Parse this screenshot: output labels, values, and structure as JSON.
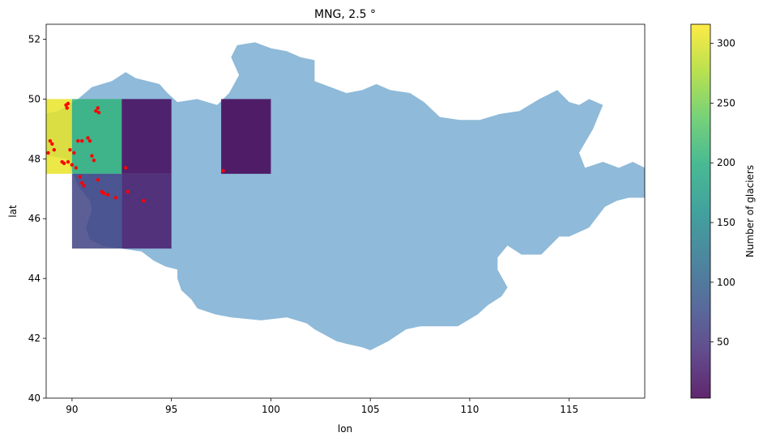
{
  "chart_data": {
    "type": "heatmap",
    "title": "MNG, 2.5 °",
    "xlabel": "lon",
    "ylabel": "lat",
    "xlim": [
      88.7,
      118.8
    ],
    "ylim": [
      40,
      52.5
    ],
    "xticks": [
      90,
      95,
      100,
      105,
      110,
      115
    ],
    "yticks": [
      40,
      42,
      44,
      46,
      48,
      50,
      52
    ],
    "grid": false,
    "cell_size_deg": 2.5,
    "cells": [
      {
        "lon": [
          87.5,
          90.0
        ],
        "lat": [
          47.5,
          50.0
        ],
        "value": 305
      },
      {
        "lon": [
          90.0,
          92.5
        ],
        "lat": [
          47.5,
          50.0
        ],
        "value": 205
      },
      {
        "lon": [
          92.5,
          95.0
        ],
        "lat": [
          47.5,
          50.0
        ],
        "value": 8
      },
      {
        "lon": [
          97.5,
          100.0
        ],
        "lat": [
          47.5,
          50.0
        ],
        "value": 3
      },
      {
        "lon": [
          90.0,
          92.5
        ],
        "lat": [
          45.0,
          47.5
        ],
        "value": 65
      },
      {
        "lon": [
          92.5,
          95.0
        ],
        "lat": [
          45.0,
          47.5
        ],
        "value": 25
      }
    ],
    "country_outline": [
      [
        87.8,
        49.2
      ],
      [
        88.6,
        49.5
      ],
      [
        89.3,
        49.6
      ],
      [
        90.3,
        50.0
      ],
      [
        91.0,
        50.4
      ],
      [
        92.0,
        50.6
      ],
      [
        92.7,
        50.9
      ],
      [
        93.2,
        50.7
      ],
      [
        94.4,
        50.5
      ],
      [
        94.8,
        50.2
      ],
      [
        95.3,
        49.9
      ],
      [
        96.3,
        50.0
      ],
      [
        97.3,
        49.8
      ],
      [
        97.9,
        50.2
      ],
      [
        98.4,
        50.8
      ],
      [
        98.0,
        51.4
      ],
      [
        98.3,
        51.8
      ],
      [
        99.2,
        51.9
      ],
      [
        100.0,
        51.7
      ],
      [
        100.8,
        51.6
      ],
      [
        101.5,
        51.4
      ],
      [
        102.2,
        51.3
      ],
      [
        102.2,
        50.6
      ],
      [
        103.0,
        50.4
      ],
      [
        103.8,
        50.2
      ],
      [
        104.6,
        50.3
      ],
      [
        105.3,
        50.5
      ],
      [
        106.0,
        50.3
      ],
      [
        107.0,
        50.2
      ],
      [
        107.7,
        49.9
      ],
      [
        108.5,
        49.4
      ],
      [
        109.5,
        49.3
      ],
      [
        110.5,
        49.3
      ],
      [
        111.5,
        49.5
      ],
      [
        112.5,
        49.6
      ],
      [
        113.5,
        50.0
      ],
      [
        114.4,
        50.3
      ],
      [
        115.0,
        49.9
      ],
      [
        115.5,
        49.8
      ],
      [
        116.0,
        50.0
      ],
      [
        116.7,
        49.8
      ],
      [
        116.2,
        49.0
      ],
      [
        115.5,
        48.2
      ],
      [
        115.8,
        47.7
      ],
      [
        116.7,
        47.9
      ],
      [
        117.5,
        47.7
      ],
      [
        118.2,
        47.9
      ],
      [
        118.8,
        47.7
      ],
      [
        118.8,
        46.7
      ],
      [
        118.0,
        46.7
      ],
      [
        117.4,
        46.6
      ],
      [
        116.8,
        46.4
      ],
      [
        116.0,
        45.7
      ],
      [
        115.0,
        45.4
      ],
      [
        114.5,
        45.4
      ],
      [
        113.6,
        44.8
      ],
      [
        112.6,
        44.8
      ],
      [
        111.9,
        45.1
      ],
      [
        111.4,
        44.7
      ],
      [
        111.4,
        44.3
      ],
      [
        111.9,
        43.7
      ],
      [
        111.6,
        43.4
      ],
      [
        110.9,
        43.1
      ],
      [
        110.4,
        42.8
      ],
      [
        109.4,
        42.4
      ],
      [
        108.6,
        42.4
      ],
      [
        107.5,
        42.4
      ],
      [
        106.8,
        42.3
      ],
      [
        105.9,
        41.9
      ],
      [
        105.0,
        41.6
      ],
      [
        104.6,
        41.7
      ],
      [
        103.9,
        41.8
      ],
      [
        103.3,
        41.9
      ],
      [
        102.2,
        42.3
      ],
      [
        101.8,
        42.5
      ],
      [
        100.8,
        42.7
      ],
      [
        99.5,
        42.6
      ],
      [
        98.0,
        42.7
      ],
      [
        97.2,
        42.8
      ],
      [
        96.3,
        43.0
      ],
      [
        96.0,
        43.3
      ],
      [
        95.5,
        43.6
      ],
      [
        95.3,
        44.0
      ],
      [
        95.3,
        44.3
      ],
      [
        94.7,
        44.4
      ],
      [
        94.1,
        44.6
      ],
      [
        93.5,
        44.9
      ],
      [
        92.5,
        45.0
      ],
      [
        91.5,
        45.1
      ],
      [
        90.9,
        45.3
      ],
      [
        90.7,
        45.7
      ],
      [
        91.0,
        46.3
      ],
      [
        90.9,
        46.6
      ],
      [
        90.3,
        47.1
      ],
      [
        90.0,
        47.6
      ],
      [
        89.7,
        48.0
      ],
      [
        88.8,
        48.1
      ],
      [
        88.1,
        48.4
      ],
      [
        87.8,
        48.7
      ]
    ],
    "glacier_points": [
      [
        89.7,
        49.8
      ],
      [
        89.75,
        49.7
      ],
      [
        89.8,
        49.85
      ],
      [
        91.3,
        49.7
      ],
      [
        91.2,
        49.6
      ],
      [
        91.35,
        49.55
      ],
      [
        88.9,
        48.6
      ],
      [
        89.0,
        48.5
      ],
      [
        89.1,
        48.3
      ],
      [
        89.9,
        48.3
      ],
      [
        90.1,
        48.2
      ],
      [
        90.3,
        48.6
      ],
      [
        90.5,
        48.6
      ],
      [
        90.8,
        48.7
      ],
      [
        90.9,
        48.6
      ],
      [
        91.0,
        48.1
      ],
      [
        91.1,
        47.95
      ],
      [
        89.5,
        47.9
      ],
      [
        89.6,
        47.85
      ],
      [
        89.8,
        47.9
      ],
      [
        90.0,
        47.8
      ],
      [
        90.2,
        47.7
      ],
      [
        90.4,
        47.4
      ],
      [
        90.5,
        47.2
      ],
      [
        90.6,
        47.1
      ],
      [
        91.5,
        46.9
      ],
      [
        91.6,
        46.85
      ],
      [
        91.8,
        46.8
      ],
      [
        92.2,
        46.7
      ],
      [
        92.8,
        46.9
      ],
      [
        93.6,
        46.6
      ],
      [
        92.7,
        47.7
      ],
      [
        97.6,
        47.6
      ],
      [
        91.3,
        47.3
      ],
      [
        88.8,
        48.2
      ]
    ],
    "colorbar": {
      "label": "Number of glaciers",
      "range": [
        3,
        316
      ],
      "ticks": [
        50,
        100,
        150,
        200,
        250,
        300
      ],
      "colormap": "viridis"
    },
    "colors": {
      "country_fill": "#8fbad9",
      "glacier": "#ff0000",
      "cell_alpha": 0.85
    }
  }
}
